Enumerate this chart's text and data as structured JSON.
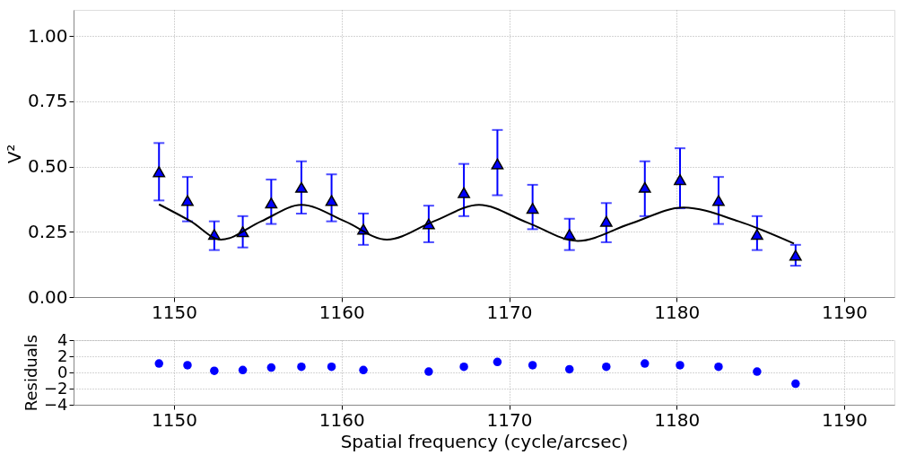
{
  "chart_data": [
    {
      "type": "scatter",
      "ylabel": "V²",
      "xlim": [
        1144,
        1193
      ],
      "xticks": [
        1150,
        1160,
        1170,
        1180,
        1190
      ],
      "ylim": [
        0,
        1.1
      ],
      "yticks": [
        {
          "value": 0,
          "label": "0.00"
        },
        {
          "value": 0.25,
          "label": "0.25"
        },
        {
          "value": 0.5,
          "label": "0.50"
        },
        {
          "value": 0.75,
          "label": "0.75"
        },
        {
          "value": 1.0,
          "label": "1.00"
        }
      ],
      "grid": true,
      "series": [
        {
          "type": "scatter",
          "marker": "triangle",
          "color": "#0000ff",
          "x": [
            1149.1,
            1150.8,
            1152.4,
            1154.1,
            1155.8,
            1157.6,
            1159.4,
            1161.3,
            1165.2,
            1167.3,
            1169.3,
            1171.4,
            1173.6,
            1175.8,
            1178.1,
            1180.2,
            1182.5,
            1184.8,
            1187.1
          ],
          "values": [
            0.48,
            0.37,
            0.24,
            0.25,
            0.36,
            0.42,
            0.37,
            0.26,
            0.28,
            0.4,
            0.51,
            0.34,
            0.24,
            0.29,
            0.42,
            0.45,
            0.37,
            0.24,
            0.16
          ],
          "errors": [
            [
              0.37,
              0.59
            ],
            [
              0.29,
              0.46
            ],
            [
              0.18,
              0.29
            ],
            [
              0.19,
              0.31
            ],
            [
              0.28,
              0.45
            ],
            [
              0.32,
              0.52
            ],
            [
              0.29,
              0.47
            ],
            [
              0.2,
              0.32
            ],
            [
              0.21,
              0.35
            ],
            [
              0.31,
              0.51
            ],
            [
              0.39,
              0.64
            ],
            [
              0.26,
              0.43
            ],
            [
              0.18,
              0.3
            ],
            [
              0.21,
              0.36
            ],
            [
              0.31,
              0.52
            ],
            [
              0.34,
              0.57
            ],
            [
              0.28,
              0.46
            ],
            [
              0.18,
              0.31
            ],
            [
              0.12,
              0.2
            ]
          ]
        },
        {
          "type": "line",
          "marker": "none",
          "line_style": "solid",
          "color": "#000000",
          "x": [
            1149.1,
            1151.0,
            1152.8,
            1155.2,
            1157.6,
            1160.2,
            1162.7,
            1165.5,
            1168.2,
            1171.1,
            1174.1,
            1177.2,
            1180.4,
            1183.7,
            1187.0
          ],
          "values": [
            0.355,
            0.29,
            0.22,
            0.29,
            0.353,
            0.29,
            0.22,
            0.29,
            0.353,
            0.285,
            0.215,
            0.28,
            0.343,
            0.29,
            0.205
          ]
        }
      ]
    },
    {
      "type": "scatter",
      "xlabel": "Spatial frequency (cycle/arcsec)",
      "ylabel": "Residuals",
      "xlim": [
        1144,
        1193
      ],
      "xticks": [
        1150,
        1160,
        1170,
        1180,
        1190
      ],
      "ylim": [
        -4,
        4
      ],
      "yticks": [
        -4,
        -2,
        0,
        2,
        4
      ],
      "grid": true,
      "series": [
        {
          "type": "scatter",
          "marker": "circle",
          "color": "#0000ff",
          "x": [
            1149.1,
            1150.8,
            1152.4,
            1154.1,
            1155.8,
            1157.6,
            1159.4,
            1161.3,
            1165.2,
            1167.3,
            1169.3,
            1171.4,
            1173.6,
            1175.8,
            1178.1,
            1180.2,
            1182.5,
            1184.8,
            1187.1
          ],
          "values": [
            1.1,
            0.9,
            0.2,
            0.3,
            0.6,
            0.7,
            0.7,
            0.3,
            0.1,
            0.7,
            1.3,
            0.9,
            0.4,
            0.7,
            1.1,
            0.9,
            0.7,
            0.1,
            -1.4
          ]
        }
      ]
    }
  ]
}
